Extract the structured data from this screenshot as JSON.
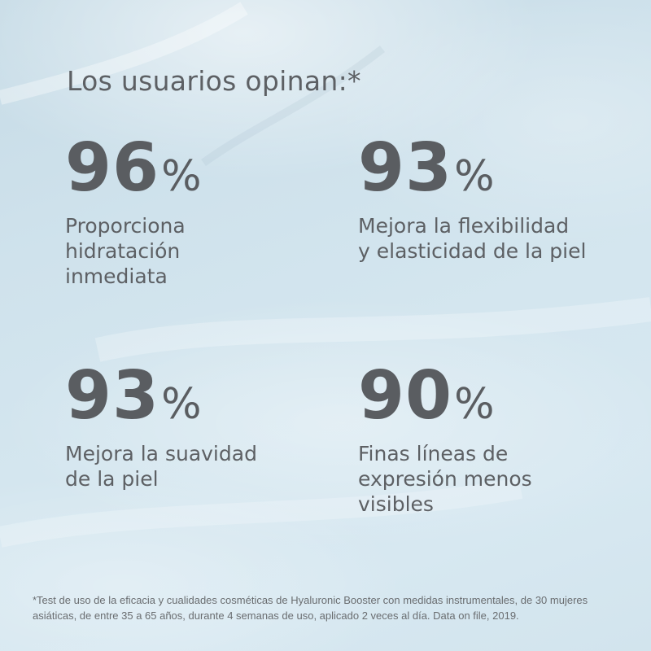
{
  "heading": "Los usuarios opinan:*",
  "stats": [
    {
      "value": "96",
      "unit": "%",
      "description": "Proporciona\nhidratación\ninmediata"
    },
    {
      "value": "93",
      "unit": "%",
      "description": "Mejora la flexibilidad\ny elasticidad de la piel"
    },
    {
      "value": "93",
      "unit": "%",
      "description": "Mejora la suavidad\nde la piel"
    },
    {
      "value": "90",
      "unit": "%",
      "description": "Finas líneas de\nexpresión menos\nvisibles"
    }
  ],
  "footnote": "*Test de uso de la eficacia y cualidades cosméticas de Hyaluronic Booster con medidas instrumentales, de 30 mujeres asiáticas, de entre 35 a 65 años, durante 4 semanas de uso, aplicado 2 veces al día. Data on file, 2019."
}
